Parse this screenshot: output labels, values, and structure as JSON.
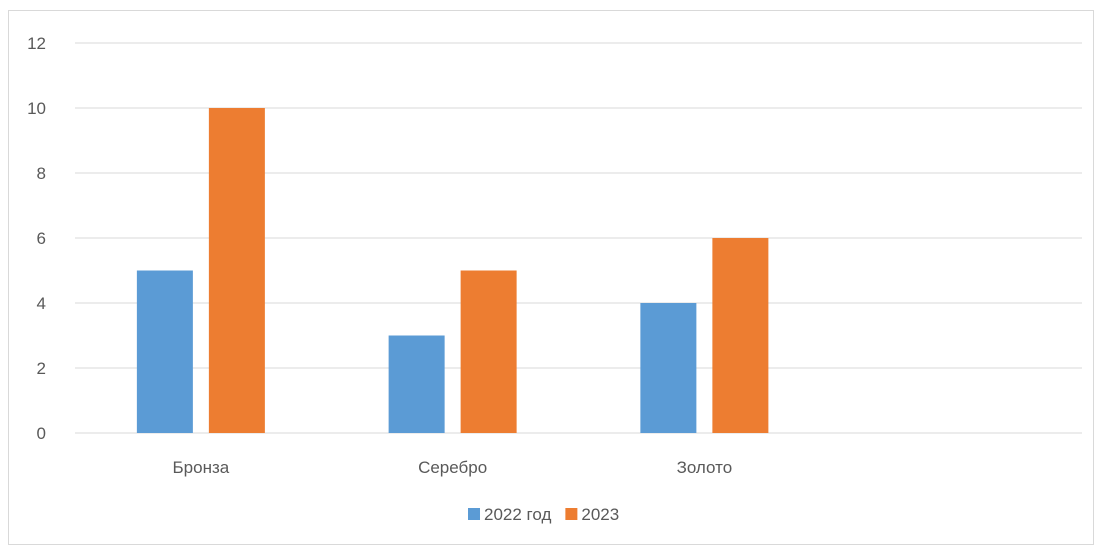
{
  "chart_data": {
    "type": "bar",
    "categories": [
      "Бронза",
      "Серебро",
      "Золото",
      ""
    ],
    "series": [
      {
        "name": "2022 год",
        "values": [
          5,
          3,
          4,
          null
        ],
        "color": "#5b9bd5"
      },
      {
        "name": "2023",
        "values": [
          10,
          5,
          6,
          null
        ],
        "color": "#ed7d31"
      }
    ],
    "ylim": [
      0,
      12
    ],
    "yticks": [
      "0",
      "2",
      "4",
      "6",
      "8",
      "10",
      "12"
    ],
    "grid": true,
    "legend_position": "bottom",
    "gridline_color": "#d9d9d9"
  }
}
